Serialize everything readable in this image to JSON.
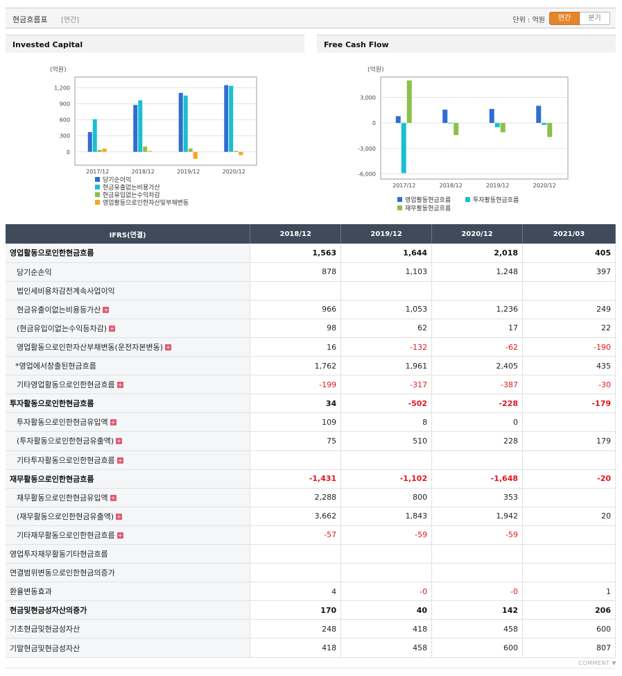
{
  "header": {
    "title": "현금흐름표",
    "period": "[연간]",
    "unit": "단위 : 억원",
    "tab_annual": "연간",
    "tab_quarter": "분기"
  },
  "colors": {
    "blue": "#2f6ecf",
    "teal": "#19bfd0",
    "green": "#8cc04a",
    "orange": "#f5a623"
  },
  "chart_invested": {
    "title": "Invested Capital",
    "ylabel": "(억원)",
    "categories": [
      "2017/12",
      "2018/12",
      "2019/12",
      "2020/12"
    ],
    "yticks": [
      "1,200",
      "900",
      "600",
      "300",
      "0"
    ],
    "series": [
      {
        "name": "당기순이익",
        "values": [
          370,
          878,
          1103,
          1248
        ]
      },
      {
        "name": "현금유출없는비용가산",
        "values": [
          610,
          966,
          1053,
          1236
        ]
      },
      {
        "name": "현금유입없는수익차감",
        "values": [
          35,
          98,
          62,
          17
        ]
      },
      {
        "name": "영업활동으로인한자산및부채변동",
        "values": [
          60,
          16,
          -132,
          -62
        ]
      }
    ]
  },
  "chart_fcf": {
    "title": "Free Cash Flow",
    "ylabel": "(억원)",
    "categories": [
      "2017/12",
      "2018/12",
      "2019/12",
      "2020/12"
    ],
    "yticks": [
      "3,000",
      "0",
      "-3,000",
      "-6,000"
    ],
    "series": [
      {
        "name": "영업활동현금흐름",
        "values": [
          800,
          1563,
          1644,
          2018
        ]
      },
      {
        "name": "투자활동현금흐름",
        "values": [
          -5900,
          34,
          -502,
          -228
        ]
      },
      {
        "name": "재무활동현금흐름",
        "values": [
          5000,
          -1431,
          -1102,
          -1648
        ]
      }
    ]
  },
  "table": {
    "header": [
      "IFRS(연결)",
      "2018/12",
      "2019/12",
      "2020/12",
      "2021/03"
    ],
    "rows": [
      {
        "label": "영업활동으로인한현금흐름",
        "level": 0,
        "bold": true,
        "plus": false,
        "values": [
          "1,563",
          "1,644",
          "2,018",
          "405"
        ]
      },
      {
        "label": "당기순손익",
        "level": 1,
        "bold": false,
        "plus": false,
        "values": [
          "878",
          "1,103",
          "1,248",
          "397"
        ]
      },
      {
        "label": "법인세비용차감전계속사업이익",
        "level": 1,
        "bold": false,
        "plus": false,
        "values": [
          "",
          "",
          "",
          ""
        ]
      },
      {
        "label": "현금유출이없는비용등가산",
        "level": 1,
        "bold": false,
        "plus": true,
        "values": [
          "966",
          "1,053",
          "1,236",
          "249"
        ]
      },
      {
        "label": "(현금유입이없는수익등차감)",
        "level": 1,
        "bold": false,
        "plus": true,
        "values": [
          "98",
          "62",
          "17",
          "22"
        ]
      },
      {
        "label": "영업활동으로인한자산부채변동(운전자본변동)",
        "level": 1,
        "bold": false,
        "plus": true,
        "values": [
          "16",
          "-132",
          "-62",
          "-190"
        ]
      },
      {
        "label": "*영업에서창출된현금흐름",
        "level": 1,
        "bold": false,
        "plus": false,
        "values": [
          "1,762",
          "1,961",
          "2,405",
          "435"
        ]
      },
      {
        "label": "기타영업활동으로인한현금흐름",
        "level": 1,
        "bold": false,
        "plus": true,
        "values": [
          "-199",
          "-317",
          "-387",
          "-30"
        ]
      },
      {
        "label": "투자활동으로인한현금흐름",
        "level": 0,
        "bold": true,
        "plus": false,
        "values": [
          "34",
          "-502",
          "-228",
          "-179"
        ]
      },
      {
        "label": "투자활동으로인한현금유입액",
        "level": 1,
        "bold": false,
        "plus": true,
        "values": [
          "109",
          "8",
          "0",
          ""
        ]
      },
      {
        "label": "(투자활동으로인한현금유출액)",
        "level": 1,
        "bold": false,
        "plus": true,
        "values": [
          "75",
          "510",
          "228",
          "179"
        ]
      },
      {
        "label": "기타투자활동으로인한현금흐름",
        "level": 1,
        "bold": false,
        "plus": true,
        "values": [
          "",
          "",
          "",
          ""
        ]
      },
      {
        "label": "재무활동으로인한현금흐름",
        "level": 0,
        "bold": true,
        "plus": false,
        "values": [
          "-1,431",
          "-1,102",
          "-1,648",
          "-20"
        ]
      },
      {
        "label": "재무활동으로인한현금유입액",
        "level": 1,
        "bold": false,
        "plus": true,
        "values": [
          "2,288",
          "800",
          "353",
          ""
        ]
      },
      {
        "label": "(재무활동으로인한현금유출액)",
        "level": 1,
        "bold": false,
        "plus": true,
        "values": [
          "3,662",
          "1,843",
          "1,942",
          "20"
        ]
      },
      {
        "label": "기타재무활동으로인한현금흐름",
        "level": 1,
        "bold": false,
        "plus": true,
        "values": [
          "-57",
          "-59",
          "-59",
          ""
        ]
      },
      {
        "label": "영업투자재무활동기타현금흐름",
        "level": 0,
        "bold": false,
        "plus": false,
        "values": [
          "",
          "",
          "",
          ""
        ]
      },
      {
        "label": "연결범위변동으로인한현금의증가",
        "level": 0,
        "bold": false,
        "plus": false,
        "values": [
          "",
          "",
          "",
          ""
        ]
      },
      {
        "label": "환율변동효과",
        "level": 0,
        "bold": false,
        "plus": false,
        "values": [
          "4",
          "-0",
          "-0",
          "1"
        ]
      },
      {
        "label": "현금및현금성자산의증가",
        "level": 0,
        "bold": true,
        "plus": false,
        "values": [
          "170",
          "40",
          "142",
          "206"
        ]
      },
      {
        "label": "기초현금및현금성자산",
        "level": 0,
        "bold": false,
        "plus": false,
        "values": [
          "248",
          "418",
          "458",
          "600"
        ]
      },
      {
        "label": "기말현금및현금성자산",
        "level": 0,
        "bold": false,
        "plus": false,
        "values": [
          "418",
          "458",
          "600",
          "807"
        ]
      }
    ]
  },
  "footer": {
    "comment": "COMMENT"
  }
}
